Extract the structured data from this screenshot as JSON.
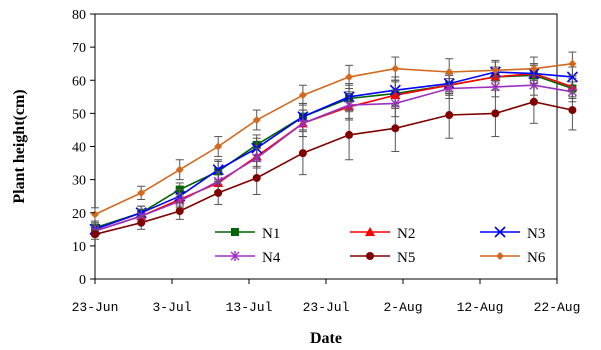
{
  "chart_data": {
    "type": "line",
    "xlabel": "Date",
    "ylabel": "Plant height(cm)",
    "ylim": [
      0,
      80
    ],
    "yticks": [
      0,
      10,
      20,
      30,
      40,
      50,
      60,
      70,
      80
    ],
    "xlim": [
      "2011-06-23",
      "2011-08-22"
    ],
    "xtick_labels": [
      "23-Jun",
      "3-Jul",
      "13-Jul",
      "23-Jul",
      "2-Aug",
      "12-Aug",
      "22-Aug"
    ],
    "xtick_dates": [
      "2011-06-23",
      "2011-07-03",
      "2011-07-13",
      "2011-07-23",
      "2011-08-02",
      "2011-08-12",
      "2011-08-22"
    ],
    "legend_placement": "inside-bottom-right",
    "x": [
      "2011-06-23",
      "2011-06-29",
      "2011-07-04",
      "2011-07-09",
      "2011-07-14",
      "2011-07-20",
      "2011-07-26",
      "2011-08-01",
      "2011-08-08",
      "2011-08-14",
      "2011-08-19",
      "2011-08-24"
    ],
    "series": [
      {
        "name": "N1",
        "color": "#006400",
        "marker": "square",
        "values": [
          15.5,
          20,
          27,
          32.5,
          40.5,
          49,
          54.5,
          56,
          58.5,
          61,
          61.5,
          57.5
        ],
        "errors": [
          1.5,
          2,
          2,
          3,
          3,
          4,
          4,
          4,
          3,
          3,
          3,
          3
        ]
      },
      {
        "name": "N2",
        "color": "#ff0000",
        "marker": "triangle",
        "values": [
          14.5,
          19,
          24,
          29,
          37,
          47,
          52,
          55.5,
          58.5,
          61,
          62,
          58
        ],
        "errors": [
          1.5,
          2,
          2,
          3,
          3,
          4,
          4,
          4,
          3,
          3,
          3,
          3
        ]
      },
      {
        "name": "N3",
        "color": "#0000ff",
        "marker": "x",
        "values": [
          15,
          20,
          25,
          33,
          39.5,
          49,
          55,
          57,
          59,
          62.5,
          62,
          61
        ],
        "errors": [
          1.5,
          2,
          2,
          3,
          3,
          4,
          4,
          4,
          3,
          3,
          3,
          3
        ]
      },
      {
        "name": "N4",
        "color": "#9b30c0",
        "marker": "star",
        "values": [
          14.5,
          19,
          23.5,
          29.5,
          36.5,
          47,
          52.5,
          53,
          57.5,
          58,
          58.5,
          56.5
        ],
        "errors": [
          1.5,
          2,
          2,
          3,
          3,
          4,
          4,
          4,
          3,
          3,
          3,
          3
        ]
      },
      {
        "name": "N5",
        "color": "#800000",
        "marker": "circle",
        "values": [
          13.5,
          17,
          20.5,
          26,
          30.5,
          38,
          43.5,
          45.5,
          49.5,
          50,
          53.5,
          51
        ],
        "errors": [
          1.5,
          2,
          2.5,
          3.5,
          5,
          6.5,
          7.5,
          7,
          7,
          7,
          6.5,
          6
        ]
      },
      {
        "name": "N6",
        "color": "#d2691e",
        "marker": "diamond",
        "values": [
          19.5,
          26,
          33,
          40,
          48,
          55.5,
          61,
          63.5,
          62.5,
          63,
          63.5,
          65
        ],
        "errors": [
          2,
          2,
          3,
          3,
          3,
          3,
          3.5,
          3.5,
          4,
          3,
          3.5,
          3.5
        ]
      }
    ]
  }
}
